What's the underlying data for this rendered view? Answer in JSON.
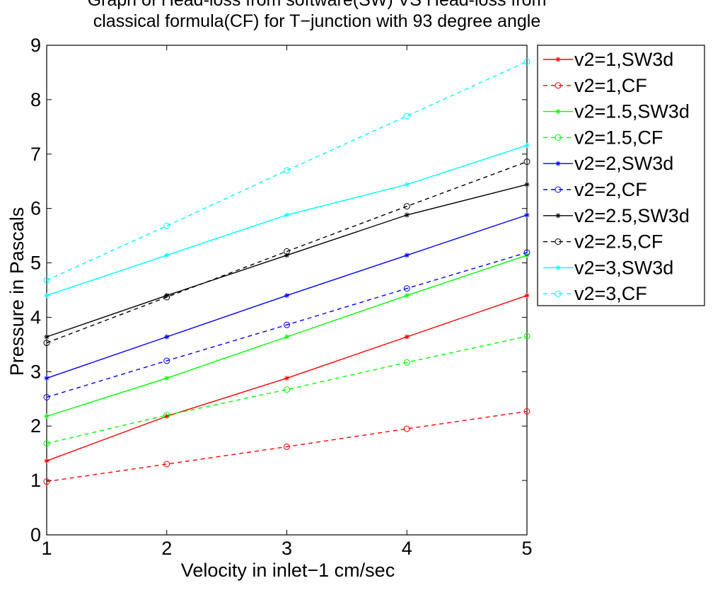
{
  "chart_data": {
    "type": "line",
    "title_lines": [
      "Graph of Head-loss from software(SW) VS Head-loss from",
      "classical formula(CF) for T−junction with 93 degree angle"
    ],
    "xlabel": "Velocity in inlet−1 cm/sec",
    "ylabel": "Pressure in Pascals",
    "xlim": [
      1,
      5
    ],
    "ylim": [
      0,
      9
    ],
    "x_ticks": [
      1,
      2,
      3,
      4,
      5
    ],
    "y_ticks": [
      0,
      1,
      2,
      3,
      4,
      5,
      6,
      7,
      8,
      9
    ],
    "grid": false,
    "legend_position": "right, outside plot area",
    "x": [
      1,
      2,
      3,
      4,
      5
    ],
    "series": [
      {
        "name": "v2=1,SW3d",
        "color": "#ff0000",
        "style": "solid",
        "marker": "star",
        "values": [
          1.36,
          2.18,
          2.88,
          3.64,
          4.4
        ]
      },
      {
        "name": "v2=1,CF",
        "color": "#ff0000",
        "style": "dashed",
        "marker": "circle",
        "values": [
          0.98,
          1.3,
          1.62,
          1.95,
          2.27
        ]
      },
      {
        "name": "v2=1.5,SW3d",
        "color": "#00ff00",
        "style": "solid",
        "marker": "star",
        "values": [
          2.18,
          2.88,
          3.64,
          4.4,
          5.14
        ]
      },
      {
        "name": "v2=1.5,CF",
        "color": "#00ff00",
        "style": "dashed",
        "marker": "circle",
        "values": [
          1.68,
          2.2,
          2.67,
          3.17,
          3.65
        ]
      },
      {
        "name": "v2=2,SW3d",
        "color": "#0000ff",
        "style": "solid",
        "marker": "star",
        "values": [
          2.88,
          3.64,
          4.4,
          5.14,
          5.88
        ]
      },
      {
        "name": "v2=2,CF",
        "color": "#0000ff",
        "style": "dashed",
        "marker": "circle",
        "values": [
          2.53,
          3.2,
          3.86,
          4.53,
          5.19
        ]
      },
      {
        "name": "v2=2.5,SW3d",
        "color": "#000000",
        "style": "solid",
        "marker": "star",
        "values": [
          3.64,
          4.4,
          5.14,
          5.88,
          6.44
        ]
      },
      {
        "name": "v2=2.5,CF",
        "color": "#000000",
        "style": "dashed",
        "marker": "circle",
        "values": [
          3.53,
          4.37,
          5.21,
          6.04,
          6.86
        ]
      },
      {
        "name": "v2=3,SW3d",
        "color": "#00ffff",
        "style": "solid",
        "marker": "star",
        "values": [
          4.4,
          5.14,
          5.88,
          6.44,
          7.16
        ]
      },
      {
        "name": "v2=3,CF",
        "color": "#00ffff",
        "style": "dashed",
        "marker": "circle",
        "values": [
          4.68,
          5.68,
          6.7,
          7.7,
          8.7
        ]
      }
    ]
  }
}
